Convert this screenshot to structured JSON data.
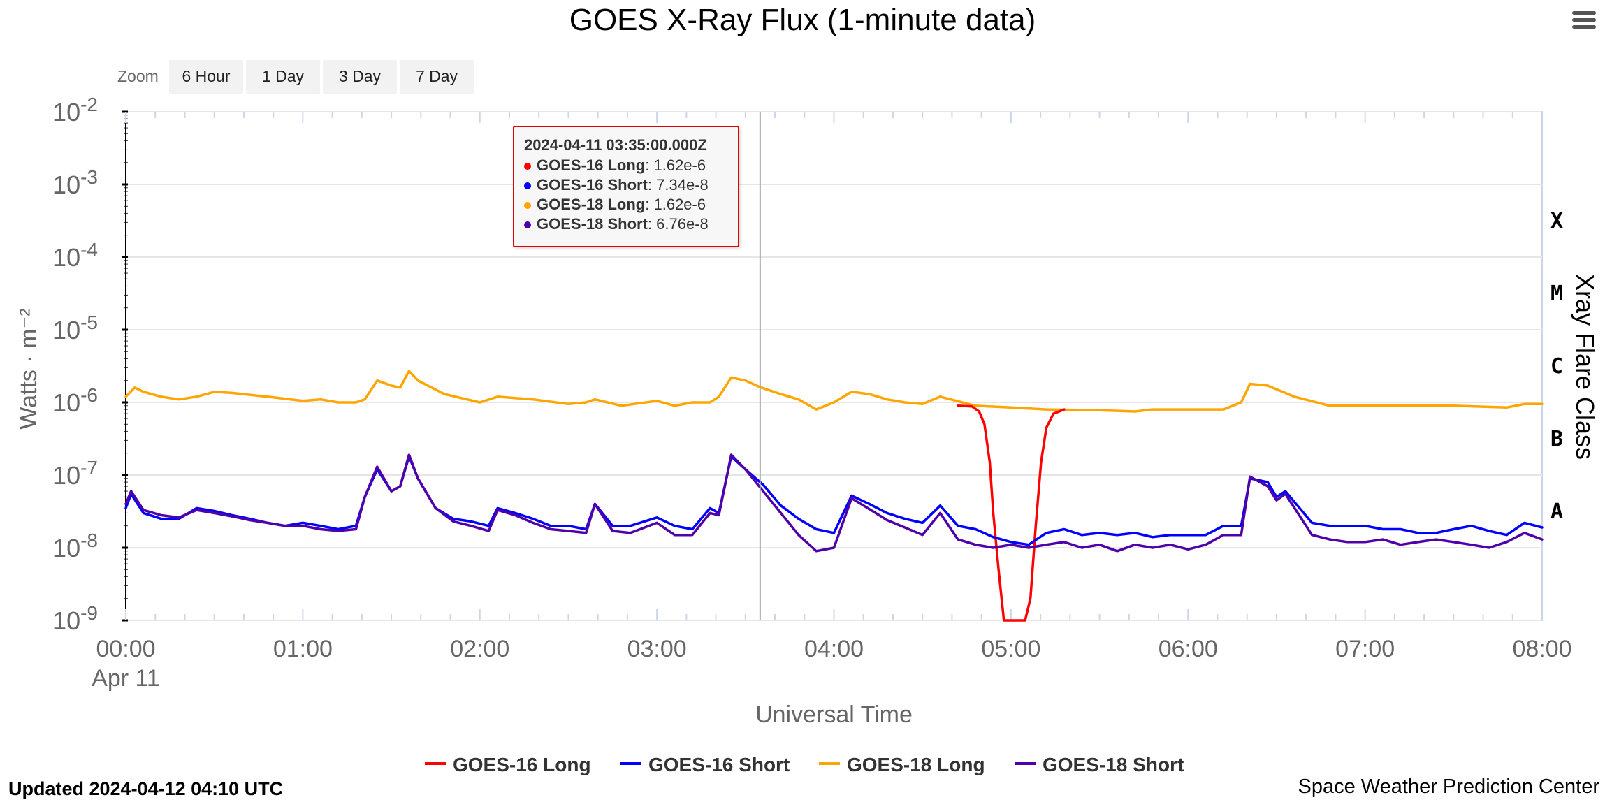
{
  "title": "GOES X-Ray Flux (1-minute data)",
  "menu": {
    "icon": "hamburger-menu-icon"
  },
  "zoom": {
    "label": "Zoom",
    "buttons": [
      "6 Hour",
      "1 Day",
      "3 Day",
      "7 Day"
    ]
  },
  "tooltip": {
    "time": "2024-04-11 03:35:00.000Z",
    "rows": [
      {
        "series": "GOES-16 Long",
        "value": "1.62e-6",
        "color": "#ff0000"
      },
      {
        "series": "GOES-16 Short",
        "value": "7.34e-8",
        "color": "#0000ff"
      },
      {
        "series": "GOES-18 Long",
        "value": "1.62e-6",
        "color": "#ffa500"
      },
      {
        "series": "GOES-18 Short",
        "value": "6.76e-8",
        "color": "#5000a8"
      }
    ]
  },
  "footer": {
    "updated": "Updated 2024-04-12 04:10 UTC",
    "credit": "Space Weather Prediction Center"
  },
  "chart_data": {
    "type": "line",
    "title": "GOES X-Ray Flux (1-minute data)",
    "xlabel": "Universal Time",
    "ylabel": "Watts · m⁻²",
    "ylabel_right": "Xray Flare Class",
    "y_scale": "log",
    "ylim": [
      1e-09,
      0.01
    ],
    "xlim_hours": [
      0,
      8
    ],
    "x_tick_labels": [
      "00:00",
      "01:00",
      "02:00",
      "03:00",
      "04:00",
      "05:00",
      "06:00",
      "07:00",
      "08:00"
    ],
    "x_date_label": "Apr 11",
    "y_ticks": [
      {
        "base": "10",
        "exp": "-2"
      },
      {
        "base": "10",
        "exp": "-3"
      },
      {
        "base": "10",
        "exp": "-4"
      },
      {
        "base": "10",
        "exp": "-5"
      },
      {
        "base": "10",
        "exp": "-6"
      },
      {
        "base": "10",
        "exp": "-7"
      },
      {
        "base": "10",
        "exp": "-8"
      },
      {
        "base": "10",
        "exp": "-9"
      }
    ],
    "flare_classes": [
      {
        "label": "X",
        "flux": 0.0001
      },
      {
        "label": "M",
        "flux": 1e-05
      },
      {
        "label": "C",
        "flux": 1e-06
      },
      {
        "label": "B",
        "flux": 1e-07
      },
      {
        "label": "A",
        "flux": 1e-08
      }
    ],
    "crosshair_hour": 3.583,
    "grid": true,
    "legend_position": "bottom-center",
    "series": [
      {
        "name": "GOES-16 Long",
        "color": "#ff0000",
        "x": [
          4.7,
          4.78,
          4.82,
          4.85,
          4.88,
          4.9,
          4.93,
          4.96,
          5.0,
          5.05,
          5.08,
          5.11,
          5.14,
          5.17,
          5.2,
          5.24,
          5.3
        ],
        "y": [
          9e-07,
          8.8e-07,
          7.5e-07,
          5e-07,
          1.5e-07,
          3e-08,
          5e-09,
          1e-09,
          1e-09,
          1e-09,
          1e-09,
          2e-09,
          2e-08,
          1.5e-07,
          4.5e-07,
          7e-07,
          8e-07
        ]
      },
      {
        "name": "GOES-16 Short",
        "color": "#0000ff",
        "x": [
          0,
          0.03,
          0.1,
          0.2,
          0.3,
          0.4,
          0.5,
          0.6,
          0.7,
          0.8,
          0.9,
          1.0,
          1.1,
          1.2,
          1.3,
          1.35,
          1.42,
          1.5,
          1.55,
          1.6,
          1.65,
          1.75,
          1.85,
          1.95,
          2.05,
          2.1,
          2.2,
          2.3,
          2.4,
          2.5,
          2.6,
          2.65,
          2.75,
          2.85,
          3.0,
          3.1,
          3.2,
          3.3,
          3.35,
          3.42,
          3.5,
          3.6,
          3.7,
          3.8,
          3.9,
          4.0,
          4.1,
          4.2,
          4.3,
          4.4,
          4.5,
          4.6,
          4.7,
          4.8,
          4.9,
          5.0,
          5.1,
          5.2,
          5.3,
          5.4,
          5.5,
          5.6,
          5.7,
          5.8,
          5.9,
          6.0,
          6.1,
          6.2,
          6.3,
          6.35,
          6.45,
          6.5,
          6.55,
          6.7,
          6.8,
          6.9,
          7.0,
          7.1,
          7.2,
          7.3,
          7.4,
          7.5,
          7.6,
          7.7,
          7.8,
          7.9,
          8.0
        ],
        "y": [
          3.5e-08,
          5.5e-08,
          3e-08,
          2.5e-08,
          2.5e-08,
          3.5e-08,
          3.2e-08,
          2.8e-08,
          2.5e-08,
          2.2e-08,
          2e-08,
          2.2e-08,
          2e-08,
          1.8e-08,
          2e-08,
          5e-08,
          1.2e-07,
          6e-08,
          7e-08,
          1.8e-07,
          9e-08,
          3.5e-08,
          2.5e-08,
          2.3e-08,
          2e-08,
          3.5e-08,
          3e-08,
          2.5e-08,
          2e-08,
          2e-08,
          1.8e-08,
          4e-08,
          2e-08,
          2e-08,
          2.6e-08,
          2e-08,
          1.8e-08,
          3.5e-08,
          3e-08,
          1.8e-07,
          1.2e-07,
          7.34e-08,
          3.8e-08,
          2.5e-08,
          1.8e-08,
          1.6e-08,
          5.2e-08,
          4e-08,
          3e-08,
          2.5e-08,
          2.2e-08,
          3.8e-08,
          2e-08,
          1.8e-08,
          1.4e-08,
          1.2e-08,
          1.1e-08,
          1.6e-08,
          1.8e-08,
          1.5e-08,
          1.6e-08,
          1.5e-08,
          1.6e-08,
          1.4e-08,
          1.5e-08,
          1.5e-08,
          1.5e-08,
          2e-08,
          2e-08,
          9e-08,
          8e-08,
          5e-08,
          6e-08,
          2.2e-08,
          2e-08,
          2e-08,
          2e-08,
          1.8e-08,
          1.8e-08,
          1.6e-08,
          1.6e-08,
          1.8e-08,
          2e-08,
          1.7e-08,
          1.5e-08,
          2.2e-08,
          1.9e-08
        ]
      },
      {
        "name": "GOES-18 Long",
        "color": "#ffa500",
        "x": [
          0,
          0.05,
          0.1,
          0.2,
          0.3,
          0.4,
          0.5,
          0.6,
          0.8,
          1.0,
          1.1,
          1.2,
          1.3,
          1.35,
          1.42,
          1.5,
          1.55,
          1.6,
          1.65,
          1.8,
          2.0,
          2.1,
          2.3,
          2.5,
          2.6,
          2.65,
          2.8,
          3.0,
          3.1,
          3.2,
          3.3,
          3.35,
          3.42,
          3.5,
          3.583,
          3.7,
          3.8,
          3.9,
          4.0,
          4.1,
          4.2,
          4.3,
          4.4,
          4.5,
          4.6,
          4.8,
          5.0,
          5.2,
          5.5,
          5.7,
          5.8,
          6.0,
          6.2,
          6.3,
          6.35,
          6.45,
          6.6,
          6.8,
          7.0,
          7.2,
          7.5,
          7.8,
          7.9,
          8.0
        ],
        "y": [
          1.2e-06,
          1.6e-06,
          1.4e-06,
          1.2e-06,
          1.1e-06,
          1.2e-06,
          1.4e-06,
          1.35e-06,
          1.2e-06,
          1.05e-06,
          1.1e-06,
          1e-06,
          1e-06,
          1.1e-06,
          2e-06,
          1.7e-06,
          1.6e-06,
          2.7e-06,
          2e-06,
          1.3e-06,
          1e-06,
          1.2e-06,
          1.1e-06,
          9.5e-07,
          1e-06,
          1.1e-06,
          9e-07,
          1.05e-06,
          9e-07,
          1e-06,
          1e-06,
          1.2e-06,
          2.2e-06,
          2e-06,
          1.62e-06,
          1.3e-06,
          1.1e-06,
          8e-07,
          1e-06,
          1.4e-06,
          1.3e-06,
          1.1e-06,
          1e-06,
          9.5e-07,
          1.2e-06,
          9e-07,
          8.5e-07,
          8e-07,
          7.8e-07,
          7.5e-07,
          8e-07,
          8e-07,
          8e-07,
          1e-06,
          1.8e-06,
          1.7e-06,
          1.2e-06,
          9e-07,
          9e-07,
          9e-07,
          9e-07,
          8.5e-07,
          9.5e-07,
          9.5e-07
        ]
      },
      {
        "name": "GOES-18 Short",
        "color": "#5000a8",
        "x": [
          0,
          0.03,
          0.1,
          0.2,
          0.3,
          0.4,
          0.5,
          0.6,
          0.7,
          0.8,
          0.9,
          1.0,
          1.1,
          1.2,
          1.3,
          1.35,
          1.42,
          1.5,
          1.55,
          1.6,
          1.65,
          1.75,
          1.85,
          1.95,
          2.05,
          2.1,
          2.2,
          2.3,
          2.4,
          2.5,
          2.6,
          2.65,
          2.75,
          2.85,
          3.0,
          3.1,
          3.2,
          3.3,
          3.35,
          3.42,
          3.5,
          3.583,
          3.7,
          3.8,
          3.9,
          4.0,
          4.1,
          4.2,
          4.3,
          4.4,
          4.5,
          4.6,
          4.7,
          4.8,
          4.9,
          5.0,
          5.1,
          5.2,
          5.3,
          5.4,
          5.5,
          5.6,
          5.7,
          5.8,
          5.9,
          6.0,
          6.1,
          6.2,
          6.3,
          6.35,
          6.45,
          6.5,
          6.55,
          6.7,
          6.8,
          6.9,
          7.0,
          7.1,
          7.2,
          7.3,
          7.4,
          7.5,
          7.6,
          7.7,
          7.8,
          7.9,
          8.0
        ],
        "y": [
          4e-08,
          6e-08,
          3.3e-08,
          2.8e-08,
          2.6e-08,
          3.3e-08,
          3e-08,
          2.7e-08,
          2.4e-08,
          2.2e-08,
          2e-08,
          2e-08,
          1.8e-08,
          1.7e-08,
          1.8e-08,
          5e-08,
          1.3e-07,
          6e-08,
          7e-08,
          1.9e-07,
          9e-08,
          3.5e-08,
          2.3e-08,
          2e-08,
          1.7e-08,
          3.3e-08,
          2.8e-08,
          2.2e-08,
          1.8e-08,
          1.7e-08,
          1.6e-08,
          4e-08,
          1.7e-08,
          1.6e-08,
          2.2e-08,
          1.5e-08,
          1.5e-08,
          3e-08,
          2.8e-08,
          1.9e-07,
          1.2e-07,
          6.76e-08,
          3e-08,
          1.5e-08,
          9e-09,
          1e-08,
          4.8e-08,
          3.4e-08,
          2.4e-08,
          1.9e-08,
          1.5e-08,
          3e-08,
          1.3e-08,
          1.1e-08,
          1e-08,
          1.1e-08,
          1e-08,
          1.1e-08,
          1.2e-08,
          1e-08,
          1.1e-08,
          9e-09,
          1.1e-08,
          1e-08,
          1.1e-08,
          9.5e-09,
          1.1e-08,
          1.5e-08,
          1.5e-08,
          9.5e-08,
          7e-08,
          4.5e-08,
          5.5e-08,
          1.5e-08,
          1.3e-08,
          1.2e-08,
          1.2e-08,
          1.3e-08,
          1.1e-08,
          1.2e-08,
          1.3e-08,
          1.2e-08,
          1.1e-08,
          1e-08,
          1.2e-08,
          1.6e-08,
          1.3e-08
        ]
      }
    ]
  }
}
